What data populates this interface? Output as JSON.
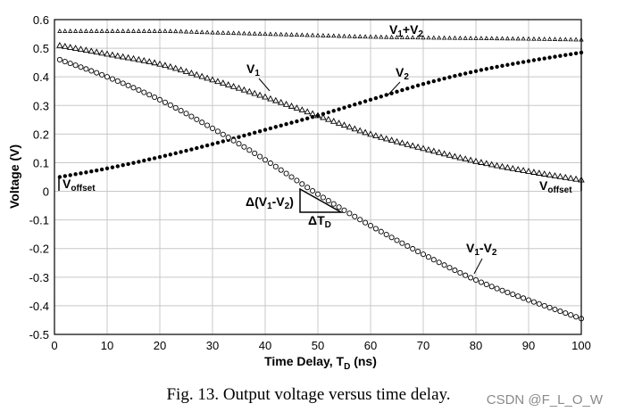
{
  "chart_data": {
    "type": "scatter",
    "title": "",
    "xlabel": "Time Delay, T",
    "xlabel_sub": "D",
    "xlabel_unit": " (ns)",
    "ylabel": "Voltage (V)",
    "xlim": [
      0,
      100
    ],
    "ylim": [
      -0.5,
      0.6
    ],
    "x_ticks": [
      "0",
      "10",
      "20",
      "30",
      "40",
      "50",
      "60",
      "70",
      "80",
      "90",
      "100"
    ],
    "y_ticks": [
      "0.6",
      "0.5",
      "0.4",
      "0.3",
      "0.2",
      "0.1",
      "0",
      "-0.1",
      "-0.2",
      "-0.3",
      "-0.4",
      "-0.5"
    ],
    "grid": true,
    "x": [
      1,
      10,
      20,
      30,
      40,
      50,
      60,
      70,
      80,
      90,
      100
    ],
    "series": [
      {
        "name": "V1+V2",
        "marker": "triangle-small",
        "values": [
          0.56,
          0.56,
          0.56,
          0.555,
          0.55,
          0.545,
          0.54,
          0.537,
          0.535,
          0.533,
          0.53
        ]
      },
      {
        "name": "V1",
        "marker": "triangle",
        "values": [
          0.51,
          0.48,
          0.445,
          0.39,
          0.33,
          0.265,
          0.2,
          0.15,
          0.105,
          0.07,
          0.04
        ]
      },
      {
        "name": "V2",
        "marker": "dot",
        "values": [
          0.05,
          0.08,
          0.12,
          0.165,
          0.215,
          0.265,
          0.32,
          0.375,
          0.42,
          0.455,
          0.485
        ]
      },
      {
        "name": "V1-V2",
        "marker": "circle",
        "values": [
          0.46,
          0.4,
          0.32,
          0.22,
          0.11,
          -0.01,
          -0.12,
          -0.22,
          -0.31,
          -0.38,
          -0.445
        ]
      }
    ],
    "annotations": {
      "v1v2_sum": {
        "main": "V",
        "sub1": "1",
        "plus": "+V",
        "sub2": "2"
      },
      "v1": {
        "main": "V",
        "sub": "1"
      },
      "v2": {
        "main": "V",
        "sub": "2"
      },
      "v1v2_diff": {
        "main": "V",
        "sub1": "1",
        "minus": "-V",
        "sub2": "2"
      },
      "offset_left": {
        "main": "V",
        "sub": "offset"
      },
      "offset_right": {
        "main": "V",
        "sub": "offset"
      },
      "delta_v": {
        "prefix": "Δ(V",
        "sub1": "1",
        "mid": "-V",
        "sub2": "2",
        "suffix": ")"
      },
      "delta_t": {
        "prefix": "ΔT",
        "sub": "D"
      }
    }
  },
  "caption": "Fig. 13.   Output voltage versus time delay.",
  "watermark": "CSDN @F_L_O_W"
}
